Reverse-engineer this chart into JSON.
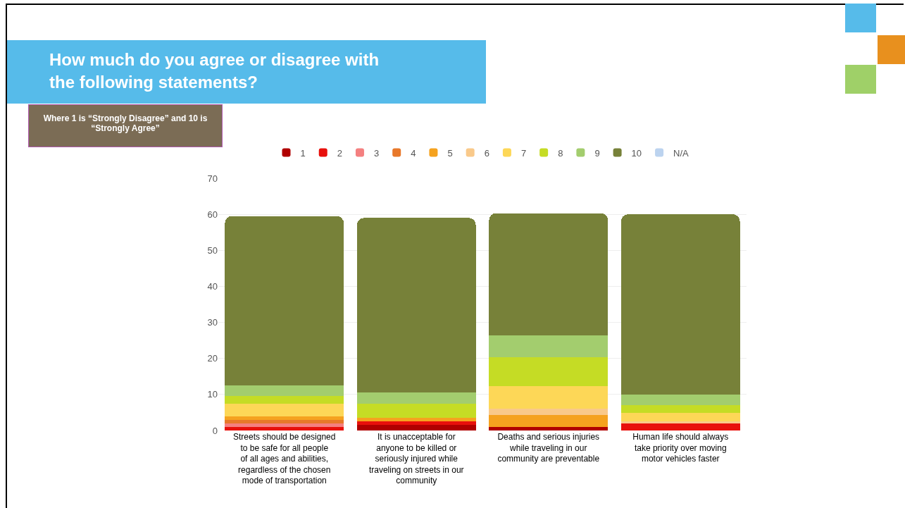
{
  "chart_data": {
    "type": "bar",
    "stacked": true,
    "title": "How much do you agree or disagree with the following statements?",
    "subtitle": "Where 1 is “Strongly Disagree” and 10 is “Strongly Agree”",
    "categories": [
      "Streets should be designed to be safe for all people of all ages and abilities, regardless of the chosen mode of transportation",
      "It is unacceptable for anyone to be killed or seriously injured while traveling on streets in our community",
      "Deaths and serious injuries while traveling in our community are preventable",
      "Human life should always take priority over moving motor vehicles faster"
    ],
    "series": [
      {
        "name": "1",
        "color": "#b00000",
        "values": [
          0,
          1.5,
          1,
          0
        ]
      },
      {
        "name": "2",
        "color": "#e8100c",
        "values": [
          1,
          1,
          0,
          2
        ]
      },
      {
        "name": "3",
        "color": "#f48080",
        "values": [
          1,
          0,
          0,
          0
        ]
      },
      {
        "name": "4",
        "color": "#e8782a",
        "values": [
          1,
          0,
          0,
          0
        ]
      },
      {
        "name": "5",
        "color": "#f5a21f",
        "values": [
          1,
          1,
          3.3,
          0
        ]
      },
      {
        "name": "6",
        "color": "#f9c98a",
        "values": [
          0,
          0,
          1.8,
          0.6
        ]
      },
      {
        "name": "7",
        "color": "#fdd757",
        "values": [
          3.5,
          0,
          6.2,
          2.3
        ]
      },
      {
        "name": "8",
        "color": "#c5dc25",
        "values": [
          2,
          4,
          8,
          2.2
        ]
      },
      {
        "name": "9",
        "color": "#a3cd6e",
        "values": [
          3,
          3,
          6,
          2.9
        ]
      },
      {
        "name": "10",
        "color": "#778139",
        "values": [
          47,
          48.5,
          34,
          50
        ]
      },
      {
        "name": "N/A",
        "color": "#bcd3ef",
        "values": [
          0,
          0,
          0,
          0
        ]
      }
    ],
    "ylim": [
      0,
      70
    ],
    "yticks": [
      0,
      10,
      20,
      30,
      40,
      50,
      60,
      70
    ],
    "grid": "y",
    "legend": "top"
  }
}
